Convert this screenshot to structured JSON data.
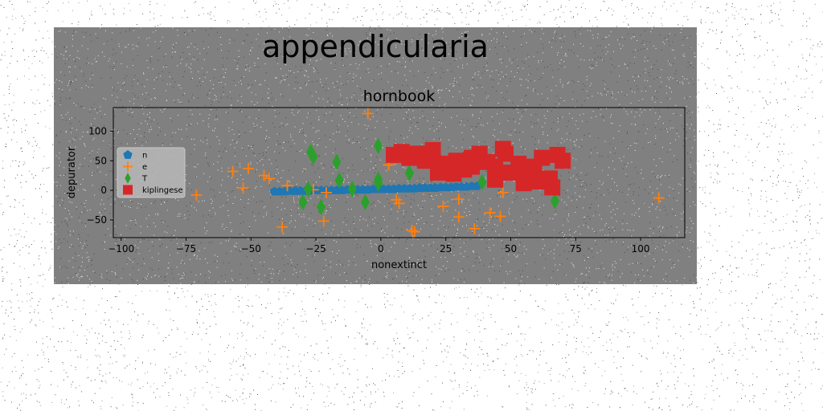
{
  "chart_data": {
    "type": "scatter",
    "suptitle": "appendicularia",
    "title": "hornbook",
    "xlabel": "nonextinct",
    "ylabel": "depurator",
    "xlim": [
      -103,
      117
    ],
    "ylim": [
      -80,
      140
    ],
    "xticks": [
      -100,
      -75,
      -50,
      -25,
      0,
      25,
      50,
      75,
      100
    ],
    "yticks": [
      -50,
      0,
      50,
      100
    ],
    "grid": false,
    "legend_position": "upper-left",
    "background_color": "#808080",
    "series": [
      {
        "name": "n",
        "marker": "pentagon",
        "color": "#1f77b4",
        "points": [
          [
            -41,
            -2
          ],
          [
            -39,
            -2
          ],
          [
            -37,
            -2
          ],
          [
            -35,
            -1
          ],
          [
            -33,
            -1
          ],
          [
            -31,
            -1
          ],
          [
            -29,
            -1
          ],
          [
            -27,
            -1
          ],
          [
            -25,
            0
          ],
          [
            -23,
            0
          ],
          [
            -21,
            0
          ],
          [
            -19,
            0
          ],
          [
            -17,
            0
          ],
          [
            -15,
            0
          ],
          [
            -13,
            1
          ],
          [
            -11,
            1
          ],
          [
            -9,
            1
          ],
          [
            -7,
            1
          ],
          [
            -5,
            1
          ],
          [
            -3,
            2
          ],
          [
            -1,
            2
          ],
          [
            1,
            2
          ],
          [
            3,
            2
          ],
          [
            5,
            2
          ],
          [
            7,
            3
          ],
          [
            9,
            3
          ],
          [
            11,
            3
          ],
          [
            13,
            3
          ],
          [
            15,
            4
          ],
          [
            17,
            4
          ],
          [
            19,
            4
          ],
          [
            21,
            4
          ],
          [
            23,
            5
          ],
          [
            25,
            5
          ],
          [
            27,
            5
          ],
          [
            29,
            6
          ],
          [
            31,
            6
          ],
          [
            33,
            6
          ],
          [
            35,
            7
          ],
          [
            37,
            7
          ]
        ]
      },
      {
        "name": "e",
        "marker": "plus",
        "color": "#ff7f0e",
        "points": [
          [
            -5,
            130
          ],
          [
            -57,
            32
          ],
          [
            -51,
            37
          ],
          [
            -45,
            25
          ],
          [
            -43,
            20
          ],
          [
            -53,
            4
          ],
          [
            -71,
            -8
          ],
          [
            -36,
            8
          ],
          [
            -26,
            1
          ],
          [
            -21,
            -4
          ],
          [
            -22,
            -52
          ],
          [
            -38,
            -62
          ],
          [
            3,
            43
          ],
          [
            6,
            -16
          ],
          [
            7,
            -22
          ],
          [
            12,
            -68
          ],
          [
            13,
            -70
          ],
          [
            24,
            -27
          ],
          [
            30,
            -15
          ],
          [
            30,
            -45
          ],
          [
            36,
            -65
          ],
          [
            42,
            -38
          ],
          [
            46,
            -44
          ],
          [
            47,
            -4
          ],
          [
            107,
            -13
          ]
        ]
      },
      {
        "name": "T",
        "marker": "thin_diamond",
        "color": "#2ca02c",
        "points": [
          [
            -27,
            65
          ],
          [
            -26,
            57
          ],
          [
            -17,
            48
          ],
          [
            -16,
            17
          ],
          [
            -11,
            2
          ],
          [
            -28,
            2
          ],
          [
            -30,
            -20
          ],
          [
            -23,
            -28
          ],
          [
            -6,
            -20
          ],
          [
            -1,
            75
          ],
          [
            -1,
            18
          ],
          [
            -1,
            12
          ],
          [
            11,
            29
          ],
          [
            39,
            14
          ],
          [
            49,
            70
          ],
          [
            67,
            -18
          ]
        ]
      },
      {
        "name": "kiplingese",
        "marker": "square",
        "color": "#d62728",
        "points": [
          [
            5,
            60
          ],
          [
            8,
            65
          ],
          [
            11,
            55
          ],
          [
            14,
            62
          ],
          [
            17,
            50
          ],
          [
            20,
            60
          ],
          [
            23,
            45
          ],
          [
            26,
            40
          ],
          [
            29,
            50
          ],
          [
            32,
            35
          ],
          [
            35,
            55
          ],
          [
            38,
            62
          ],
          [
            41,
            48
          ],
          [
            44,
            40
          ],
          [
            47,
            70
          ],
          [
            50,
            30
          ],
          [
            53,
            45
          ],
          [
            56,
            25
          ],
          [
            59,
            40
          ],
          [
            62,
            55
          ],
          [
            65,
            20
          ],
          [
            68,
            60
          ],
          [
            66,
            5
          ],
          [
            70,
            50
          ],
          [
            22,
            30
          ],
          [
            28,
            28
          ],
          [
            44,
            18
          ],
          [
            48,
            62
          ],
          [
            55,
            12
          ],
          [
            60,
            15
          ],
          [
            35,
            40
          ],
          [
            20,
            68
          ]
        ]
      }
    ]
  }
}
